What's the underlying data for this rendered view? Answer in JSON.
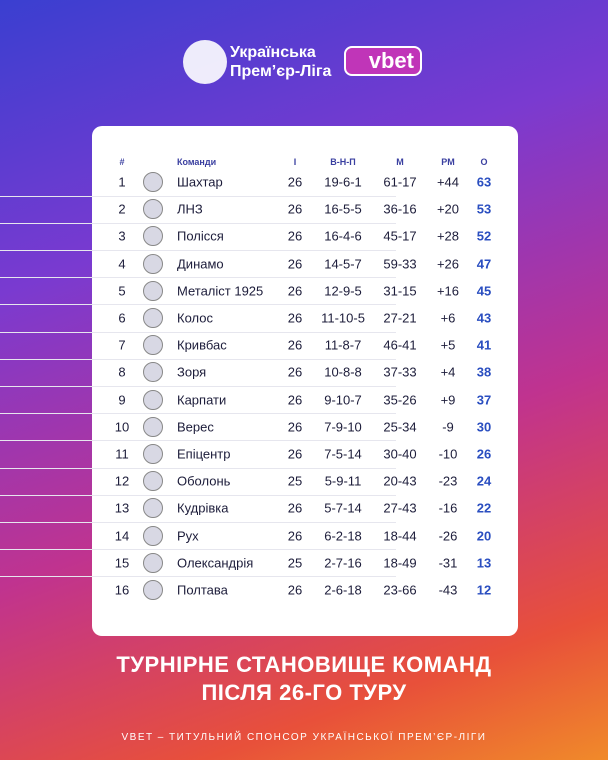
{
  "header": {
    "league": [
      "Українська",
      "Прем’єр-Ліга"
    ],
    "sponsor": "vbet"
  },
  "table": {
    "columns": [
      "#",
      "Команди",
      "І",
      "В-Н-П",
      "М",
      "РМ",
      "О"
    ],
    "rows": [
      [
        "1",
        "Шахтар",
        "26",
        "19-6-1",
        "61-17",
        "+44",
        "63"
      ],
      [
        "2",
        "ЛНЗ",
        "26",
        "16-5-5",
        "36-16",
        "+20",
        "53"
      ],
      [
        "3",
        "Полісся",
        "26",
        "16-4-6",
        "45-17",
        "+28",
        "52"
      ],
      [
        "4",
        "Динамо",
        "26",
        "14-5-7",
        "59-33",
        "+26",
        "47"
      ],
      [
        "5",
        "Металіст 1925",
        "26",
        "12-9-5",
        "31-15",
        "+16",
        "45"
      ],
      [
        "6",
        "Колос",
        "26",
        "11-10-5",
        "27-21",
        "+6",
        "43"
      ],
      [
        "7",
        "Кривбас",
        "26",
        "11-8-7",
        "46-41",
        "+5",
        "41"
      ],
      [
        "8",
        "Зоря",
        "26",
        "10-8-8",
        "37-33",
        "+4",
        "38"
      ],
      [
        "9",
        "Карпати",
        "26",
        "9-10-7",
        "35-26",
        "+9",
        "37"
      ],
      [
        "10",
        "Верес",
        "26",
        "7-9-10",
        "25-34",
        "-9",
        "30"
      ],
      [
        "11",
        "Епіцентр",
        "26",
        "7-5-14",
        "30-40",
        "-10",
        "26"
      ],
      [
        "12",
        "Оболонь",
        "25",
        "5-9-11",
        "20-43",
        "-23",
        "24"
      ],
      [
        "13",
        "Кудрівка",
        "26",
        "5-7-14",
        "27-43",
        "-16",
        "22"
      ],
      [
        "14",
        "Рух",
        "26",
        "6-2-18",
        "18-44",
        "-26",
        "20"
      ],
      [
        "15",
        "Олександрія",
        "25",
        "2-7-16",
        "18-49",
        "-31",
        "13"
      ],
      [
        "16",
        "Полтава",
        "26",
        "2-6-18",
        "23-66",
        "-43",
        "12"
      ]
    ]
  },
  "footer": {
    "title": [
      "ТУРНІРНЕ СТАНОВИЩЕ КОМАНД",
      "ПІСЛЯ 26-ГО ТУРУ"
    ],
    "note": "VBET – ТИТУЛЬНИЙ СПОНСОР УКРАЇНСЬКОЇ ПРЕМ’ЄР-ЛІГИ"
  }
}
